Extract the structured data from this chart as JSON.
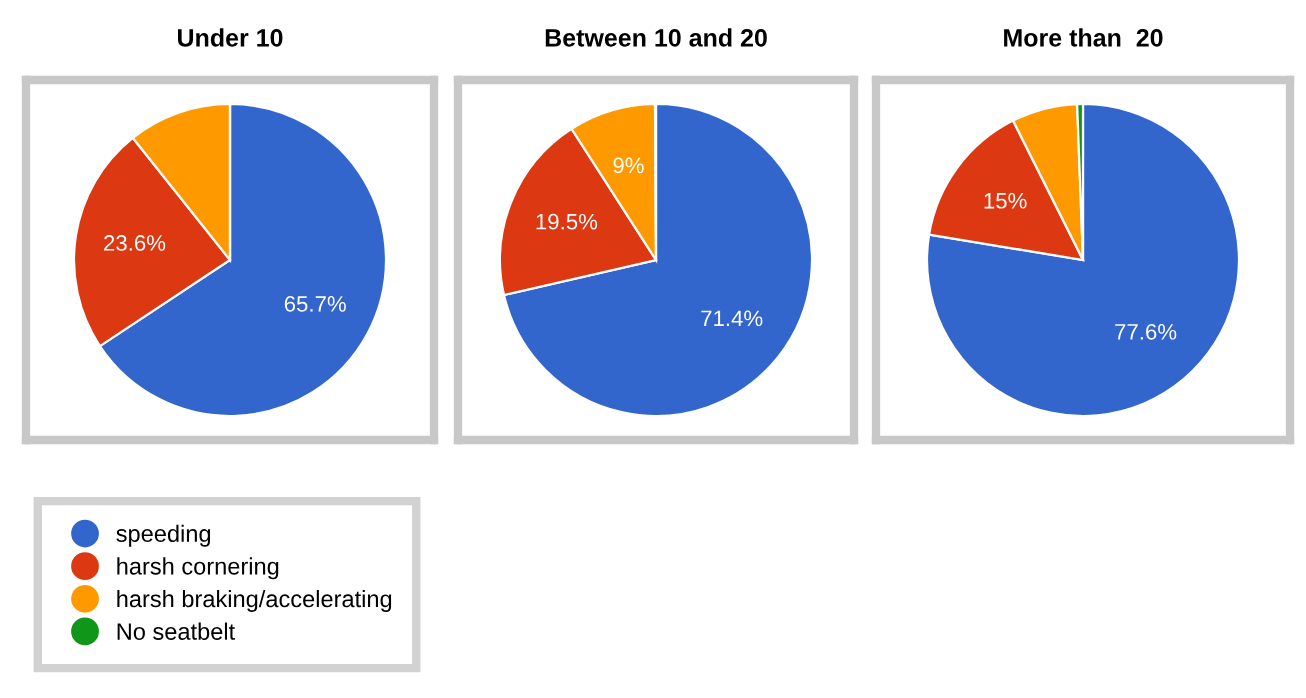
{
  "chart_data": [
    {
      "type": "pie",
      "title": "Under 10",
      "categories": [
        "speeding",
        "harsh cornering",
        "harsh braking/accelerating",
        "No seatbelt"
      ],
      "values": [
        65.7,
        23.6,
        10.7,
        0
      ],
      "colors": [
        "#3366cc",
        "#dc3912",
        "#ff9900",
        "#109618"
      ],
      "value_labels": [
        "65.7%",
        "23.6%",
        null,
        null
      ],
      "legend": "bottom"
    },
    {
      "type": "pie",
      "title": "Between 10 and 20",
      "categories": [
        null,
        null,
        null,
        null
      ],
      "values": [
        71.4,
        19.5,
        9,
        0.1
      ],
      "colors": [
        "#3366cc",
        "#dc3912",
        "#ff9900",
        "#109618"
      ],
      "value_labels": [
        "71.4%",
        "19.5%",
        "9%",
        null
      ]
    },
    {
      "type": "pie",
      "title": "More than  20",
      "categories": [
        null,
        null,
        null,
        null
      ],
      "values": [
        77.6,
        15,
        6.8,
        0.6
      ],
      "colors": [
        "#3366cc",
        "#dc3912",
        "#ff9900",
        "#109618"
      ],
      "value_labels": [
        "77.6%",
        "15%",
        null,
        null
      ]
    }
  ]
}
